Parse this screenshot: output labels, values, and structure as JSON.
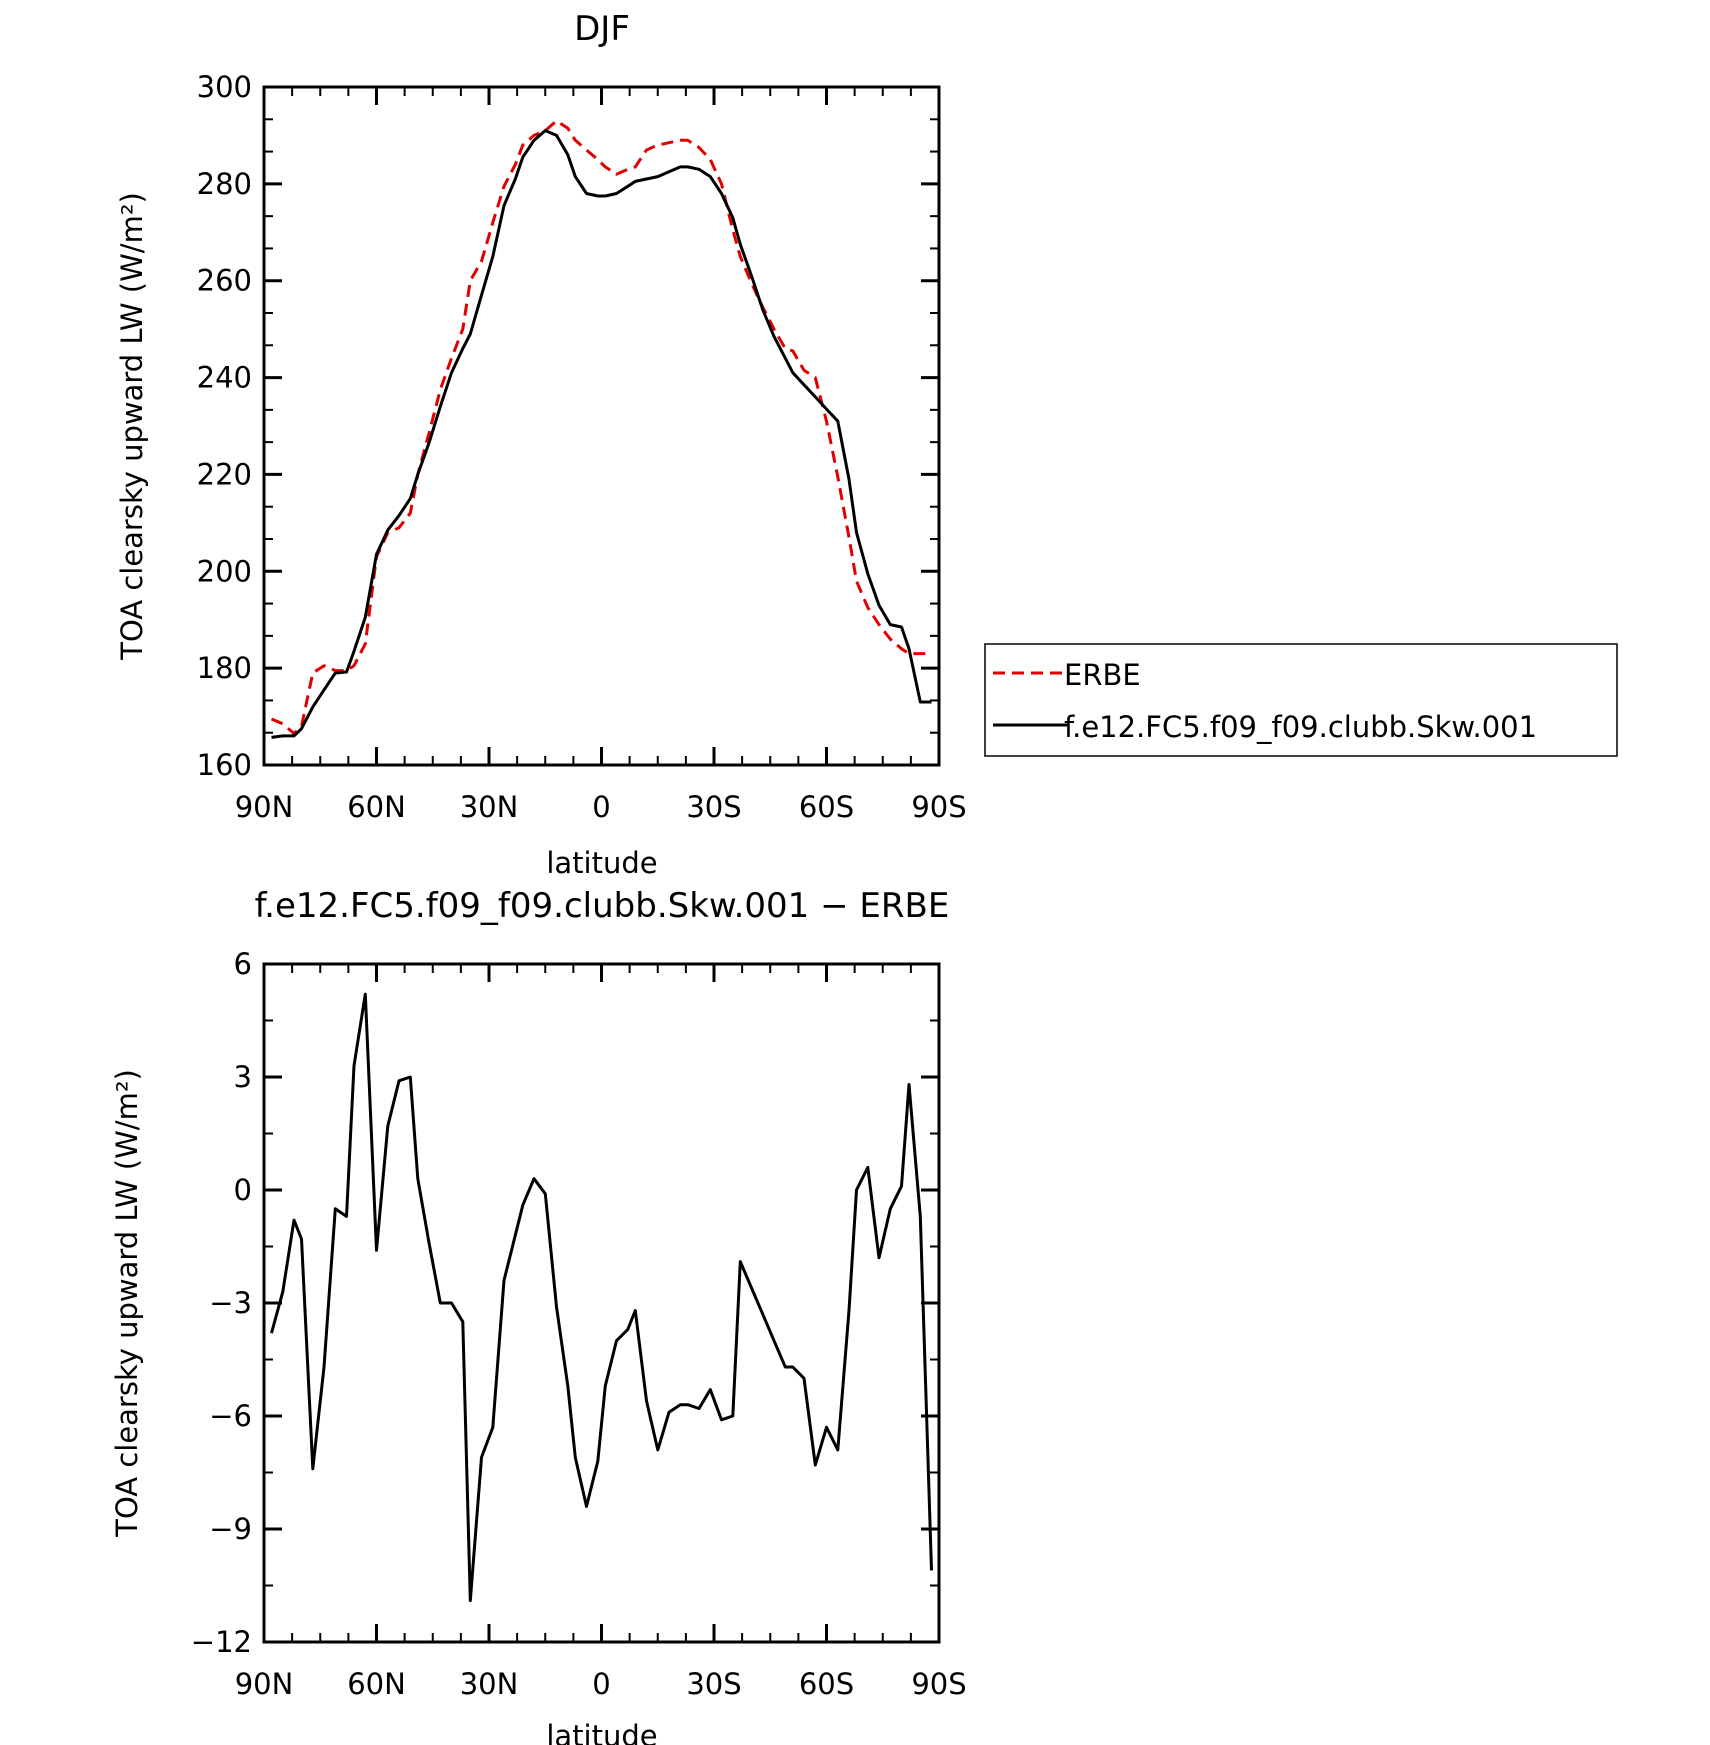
{
  "chart_data": [
    {
      "type": "line",
      "title": "DJF",
      "xlabel": "latitude",
      "ylabel": "TOA clearsky upward LW (W/m²)",
      "xlim": [
        90,
        -90
      ],
      "ylim": [
        160,
        300
      ],
      "xticks": [
        90,
        60,
        30,
        0,
        -30,
        -60,
        -90
      ],
      "xtick_labels": [
        "90N",
        "60N",
        "30N",
        "0",
        "30S",
        "60S",
        "90S"
      ],
      "yticks": [
        160,
        180,
        200,
        220,
        240,
        260,
        280,
        300
      ],
      "ytick_labels": [
        "160",
        "180",
        "200",
        "220",
        "240",
        "260",
        "280",
        "300"
      ],
      "grid": false,
      "legend_position": "right, outside plot",
      "x": [
        88,
        85,
        82,
        80,
        77,
        74,
        71,
        68,
        66,
        63,
        60,
        57,
        54,
        51,
        49,
        46,
        43,
        40,
        37,
        35,
        32,
        29,
        26,
        23,
        21,
        18,
        15,
        12,
        9,
        7,
        4,
        1,
        -1,
        -4,
        -7,
        -9,
        -12,
        -15,
        -18,
        -21,
        -23,
        -26,
        -29,
        -32,
        -35,
        -37,
        -40,
        -43,
        -46,
        -49,
        -51,
        -54,
        -57,
        -60,
        -63,
        -66,
        -68,
        -71,
        -74,
        -77,
        -80,
        -82,
        -85,
        -88
      ],
      "series": [
        {
          "name": "ERBE",
          "color": "#e00000",
          "dash": "dashed",
          "values": [
            169.5,
            168.5,
            166.5,
            168.0,
            179.0,
            180.5,
            179.5,
            179.5,
            180.5,
            185.0,
            203.0,
            208.0,
            209.0,
            212.0,
            220.0,
            228.5,
            237.5,
            244.0,
            250.0,
            260.0,
            264.0,
            272.0,
            279.5,
            284.0,
            288.0,
            290.0,
            291.0,
            293.0,
            291.5,
            289.0,
            287.0,
            285.0,
            283.5,
            282.0,
            283.0,
            283.5,
            287.0,
            288.0,
            288.5,
            289.0,
            289.0,
            287.5,
            285.0,
            280.0,
            270.5,
            265.0,
            259.5,
            254.5,
            250.0,
            246.0,
            245.5,
            241.5,
            240.0,
            231.0,
            219.5,
            207.0,
            198.0,
            192.5,
            189.0,
            186.0,
            184.0,
            183.0,
            183.0,
            183.0
          ]
        },
        {
          "name": "f.e12.FC5.f09_f09.clubb.Skw.001",
          "color": "#000000",
          "dash": "solid",
          "values": [
            165.7,
            166.0,
            166.0,
            167.5,
            172.0,
            175.5,
            179.0,
            179.2,
            183.5,
            190.5,
            203.5,
            208.5,
            211.5,
            215.0,
            220.0,
            226.5,
            234.0,
            241.0,
            246.0,
            249.0,
            257.0,
            265.0,
            275.5,
            281.0,
            285.5,
            289.0,
            291.0,
            290.0,
            286.0,
            281.5,
            278.0,
            277.5,
            277.5,
            278.0,
            279.5,
            280.5,
            281.0,
            281.5,
            282.5,
            283.5,
            283.5,
            283.0,
            281.5,
            278.0,
            273.0,
            267.5,
            261.0,
            254.0,
            248.5,
            244.0,
            241.0,
            238.5,
            236.0,
            233.5,
            231.0,
            219.0,
            208.0,
            199.5,
            193.0,
            189.0,
            188.5,
            184.0,
            173.0,
            173.0
          ]
        }
      ]
    },
    {
      "type": "line",
      "title": "f.e12.FC5.f09_f09.clubb.Skw.001 − ERBE",
      "xlabel": "latitude",
      "ylabel": "TOA clearsky upward LW (W/m²)",
      "xlim": [
        90,
        -90
      ],
      "ylim": [
        -12,
        6
      ],
      "xticks": [
        90,
        60,
        30,
        0,
        -30,
        -60,
        -90
      ],
      "xtick_labels": [
        "90N",
        "60N",
        "30N",
        "0",
        "30S",
        "60S",
        "90S"
      ],
      "yticks": [
        6,
        3,
        0,
        -3,
        -6,
        -9,
        -12
      ],
      "ytick_labels": [
        "6",
        "3",
        "0",
        "−3",
        "−6",
        "−9",
        "−12"
      ],
      "grid": false,
      "x": [
        88,
        85,
        82,
        80,
        77,
        74,
        71,
        68,
        66,
        63,
        60,
        57,
        54,
        51,
        49,
        46,
        43,
        40,
        37,
        35,
        32,
        29,
        26,
        23,
        21,
        18,
        15,
        12,
        9,
        7,
        4,
        1,
        -1,
        -4,
        -7,
        -9,
        -12,
        -15,
        -18,
        -21,
        -23,
        -26,
        -29,
        -32,
        -35,
        -37,
        -40,
        -43,
        -46,
        -49,
        -51,
        -54,
        -57,
        -60,
        -63,
        -66,
        -68,
        -71,
        -74,
        -77,
        -80,
        -82,
        -85,
        -88
      ],
      "series": [
        {
          "color": "#000000",
          "dash": "solid",
          "values": [
            -3.8,
            -2.7,
            -0.8,
            -1.3,
            -7.4,
            -4.7,
            -0.5,
            -0.7,
            3.3,
            5.2,
            -1.6,
            1.7,
            2.9,
            3.0,
            0.3,
            -1.4,
            -3.0,
            -3.0,
            -3.5,
            -10.9,
            -7.1,
            -6.3,
            -2.4,
            -1.2,
            -0.4,
            0.3,
            -0.1,
            -3.1,
            -5.2,
            -7.1,
            -8.4,
            -7.2,
            -5.2,
            -4.0,
            -3.7,
            -3.2,
            -5.6,
            -6.9,
            -5.9,
            -5.7,
            -5.7,
            -5.8,
            -5.3,
            -6.1,
            -6.0,
            -1.9,
            -2.6,
            -3.3,
            -4.0,
            -4.7,
            -4.7,
            -5.0,
            -7.3,
            -6.3,
            -6.9,
            -3.2,
            0.0,
            0.6,
            -1.8,
            -0.5,
            0.1,
            2.8,
            -0.7,
            -10.1
          ]
        }
      ]
    }
  ]
}
